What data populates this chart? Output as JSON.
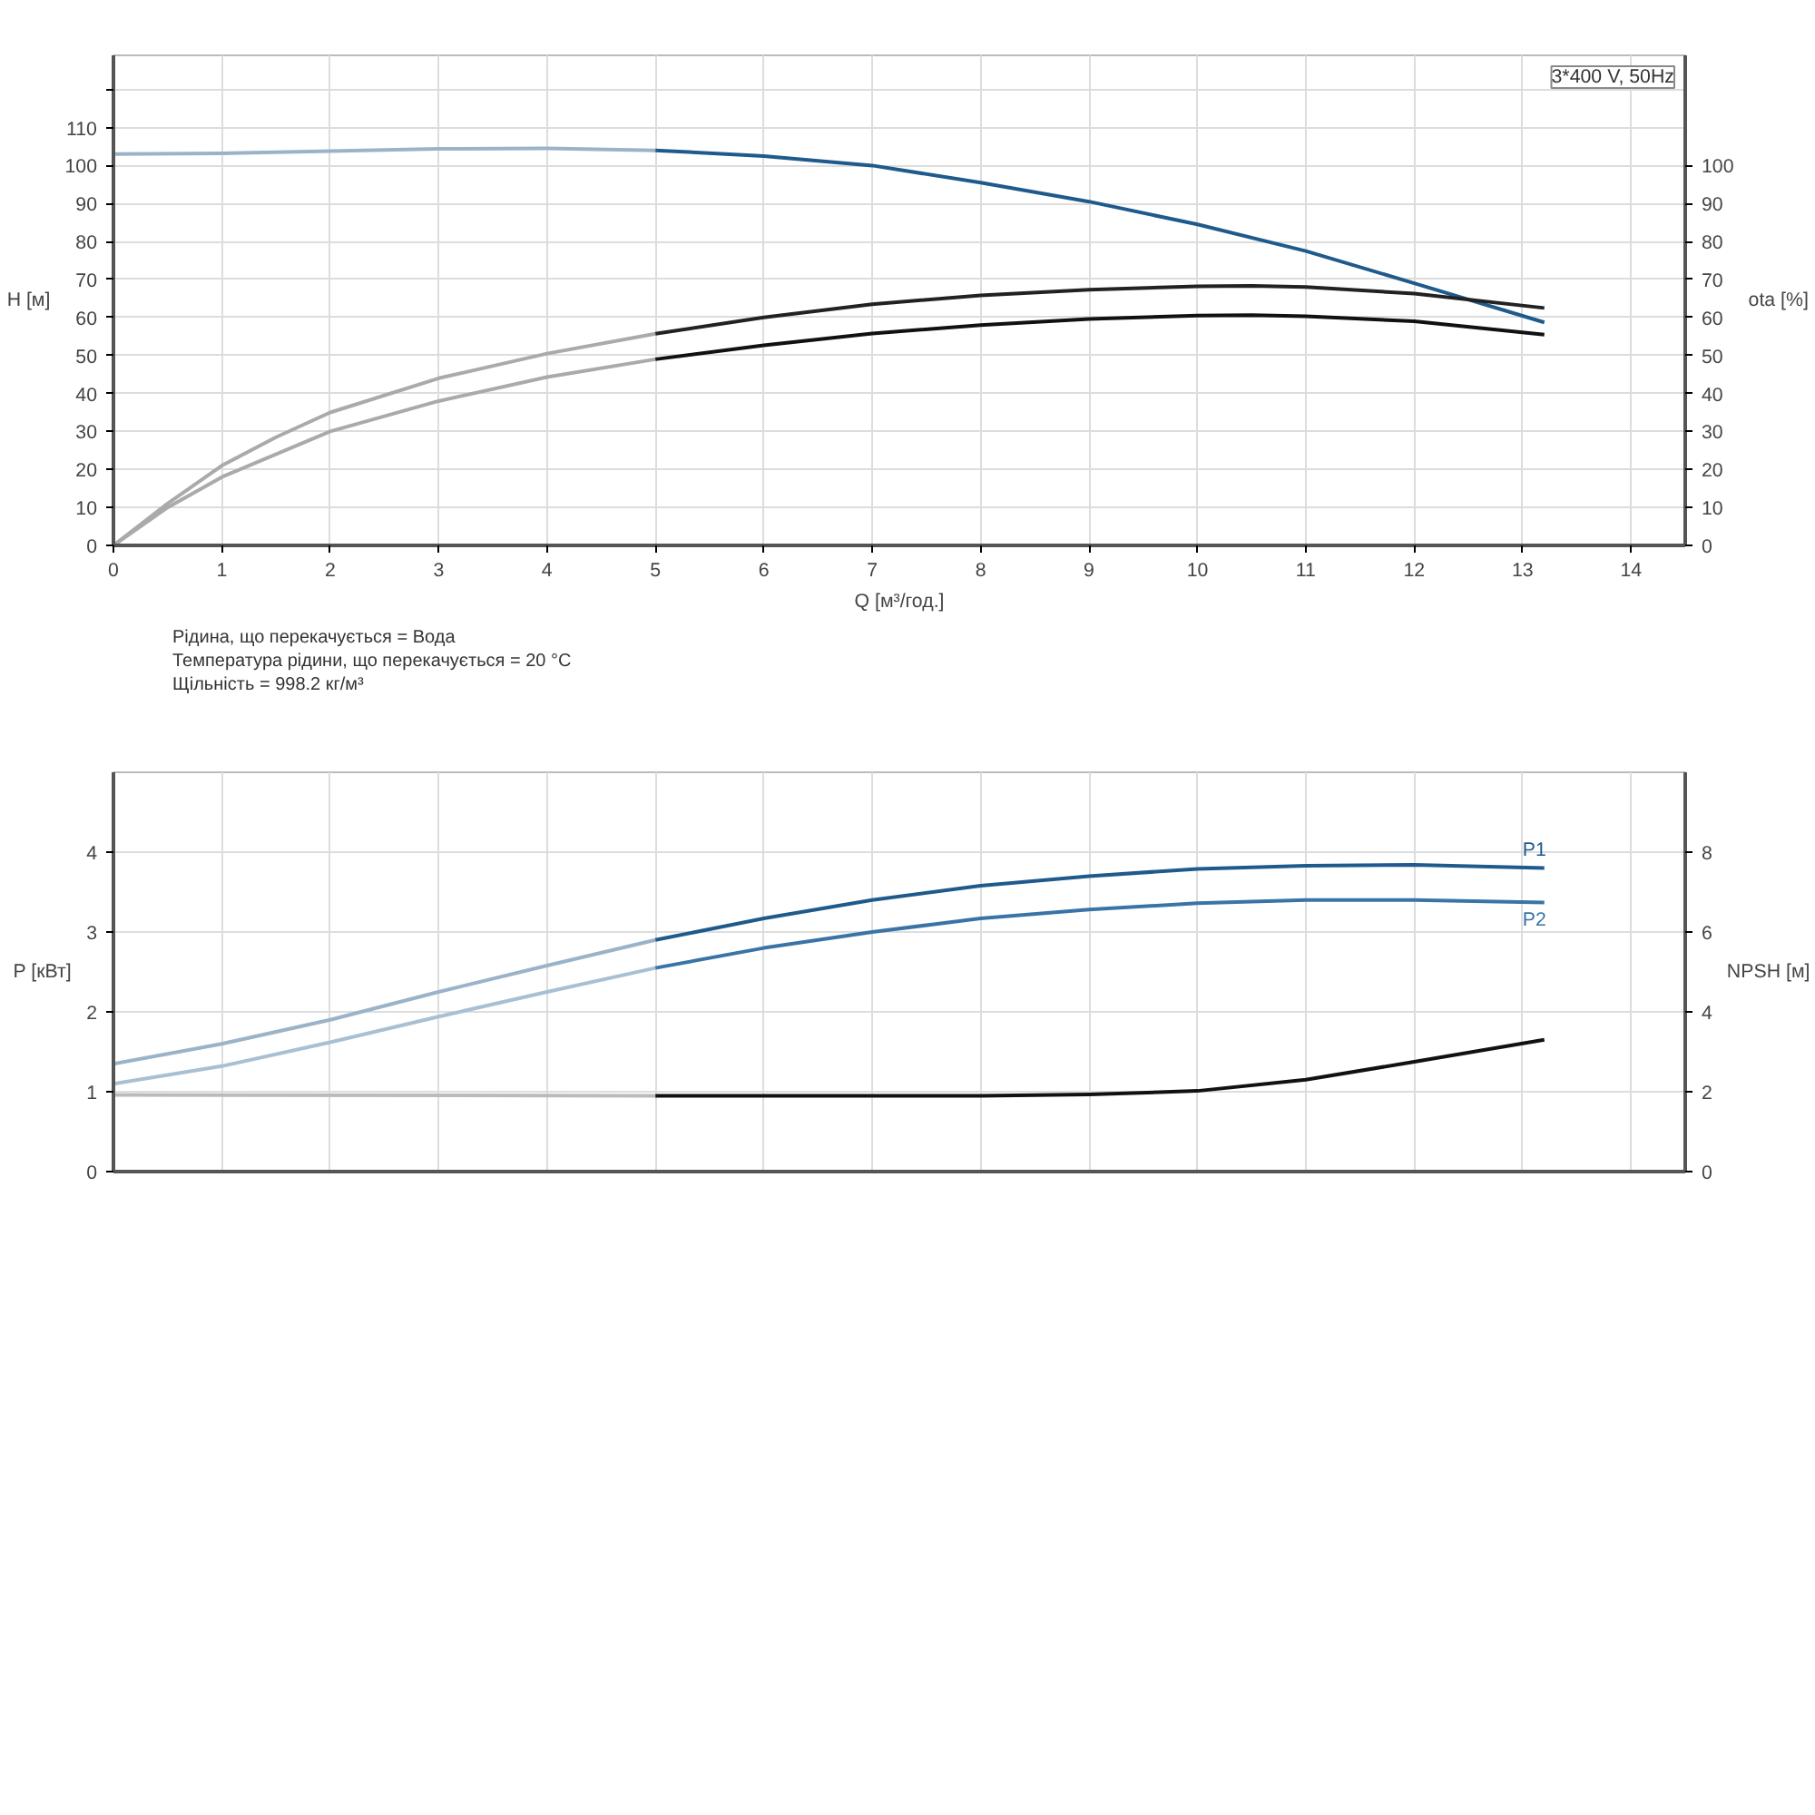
{
  "chart_data": [
    {
      "type": "line",
      "xlabel": "Q [м³/год.]",
      "ylabel": "H [м]",
      "y2label": "ota [%]",
      "xlim": [
        0,
        14.5
      ],
      "xticks": [
        0,
        1,
        2,
        3,
        4,
        5,
        6,
        7,
        8,
        9,
        10,
        11,
        12,
        13,
        14
      ],
      "ylim": [
        0,
        129
      ],
      "yticks": [
        0,
        10,
        20,
        30,
        40,
        50,
        60,
        70,
        80,
        90,
        100,
        110,
        {
          "value": 120,
          "label": null
        }
      ],
      "y2lim": [
        0,
        129
      ],
      "y2ticks": [
        0,
        10,
        20,
        30,
        40,
        50,
        60,
        70,
        80,
        90,
        100
      ],
      "grid": true,
      "annotations": [
        "3*400 V, 50Hz",
        "Рідина, що перекачується = Вода",
        "Температура рідини, що перекачується = 20 °C",
        "Щільність = 998.2 кг/м³"
      ],
      "series": [
        {
          "color": "#9bb3c8",
          "x": [
            0,
            1,
            2,
            3,
            4,
            5
          ],
          "values": [
            103,
            103.2,
            103.8,
            104.4,
            104.5,
            104
          ]
        },
        {
          "color": "#1f5a8c",
          "x": [
            5,
            6,
            7,
            8,
            9,
            10,
            11,
            12,
            13.2
          ],
          "values": [
            104,
            102.5,
            100,
            95.5,
            90.5,
            84.5,
            77.5,
            69,
            58.7
          ]
        },
        {
          "color": "#aaaaaa",
          "axis": "y2",
          "x": [
            0,
            0.5,
            1,
            1.5,
            2,
            3,
            4,
            5
          ],
          "values": [
            0,
            11,
            21,
            28.5,
            35,
            44,
            50.5,
            55.7
          ]
        },
        {
          "color": "#222222",
          "axis": "y2",
          "x": [
            5,
            6,
            7,
            8,
            9,
            10,
            10.5,
            11,
            12,
            13.2
          ],
          "values": [
            55.7,
            60,
            63.5,
            65.8,
            67.3,
            68.2,
            68.3,
            68,
            66.3,
            62.5
          ]
        },
        {
          "color": "#aaaaaa",
          "axis": "y2",
          "x": [
            0,
            0.5,
            1,
            2,
            3,
            4,
            5
          ],
          "values": [
            0,
            10,
            18,
            30,
            38,
            44.3,
            49
          ]
        },
        {
          "color": "#111111",
          "axis": "y2",
          "x": [
            5,
            6,
            7,
            8,
            9,
            10,
            10.5,
            11,
            12,
            13.2
          ],
          "values": [
            49,
            52.7,
            55.8,
            58,
            59.6,
            60.5,
            60.6,
            60.3,
            59,
            55.5
          ]
        }
      ]
    },
    {
      "type": "line",
      "ylabel": "P [кВт]",
      "y2label": "NPSH [м]",
      "tick_labels": "y",
      "xlim": [
        0,
        14.5
      ],
      "xticks": [
        0,
        1,
        2,
        3,
        4,
        5,
        6,
        7,
        8,
        9,
        10,
        11,
        12,
        13,
        14
      ],
      "ylim": [
        0,
        5
      ],
      "yticks": [
        0,
        1,
        2,
        3,
        4
      ],
      "y2lim": [
        0,
        10
      ],
      "y2ticks": [
        0,
        2,
        4,
        6,
        8
      ],
      "grid": true,
      "series": [
        {
          "color": "#9bb3c8",
          "x": [
            0,
            1,
            2,
            3,
            4,
            5
          ],
          "values": [
            1.35,
            1.6,
            1.9,
            2.25,
            2.58,
            2.9
          ]
        },
        {
          "name": "P1",
          "color": "#1f5a8c",
          "x": [
            5,
            6,
            7,
            8,
            9,
            10,
            11,
            12,
            13.2
          ],
          "values": [
            2.9,
            3.17,
            3.4,
            3.58,
            3.7,
            3.79,
            3.83,
            3.84,
            3.8
          ]
        },
        {
          "color": "#a9bfd2",
          "x": [
            0,
            1,
            2,
            3,
            4,
            5
          ],
          "values": [
            1.1,
            1.32,
            1.62,
            1.94,
            2.25,
            2.55
          ]
        },
        {
          "name": "P2",
          "color": "#3a74a6",
          "x": [
            5,
            6,
            7,
            8,
            9,
            10,
            11,
            12,
            13.2
          ],
          "values": [
            2.55,
            2.8,
            3.0,
            3.17,
            3.28,
            3.36,
            3.4,
            3.4,
            3.37
          ]
        },
        {
          "color": "#bbbbbb",
          "axis": "y2",
          "x": [
            0,
            5
          ],
          "values": [
            1.92,
            1.9
          ]
        },
        {
          "color": "#111111",
          "axis": "y2",
          "x": [
            5,
            8,
            9,
            10,
            11,
            12,
            13.2
          ],
          "values": [
            1.9,
            1.9,
            1.93,
            2.02,
            2.3,
            2.75,
            3.3
          ]
        }
      ]
    }
  ]
}
